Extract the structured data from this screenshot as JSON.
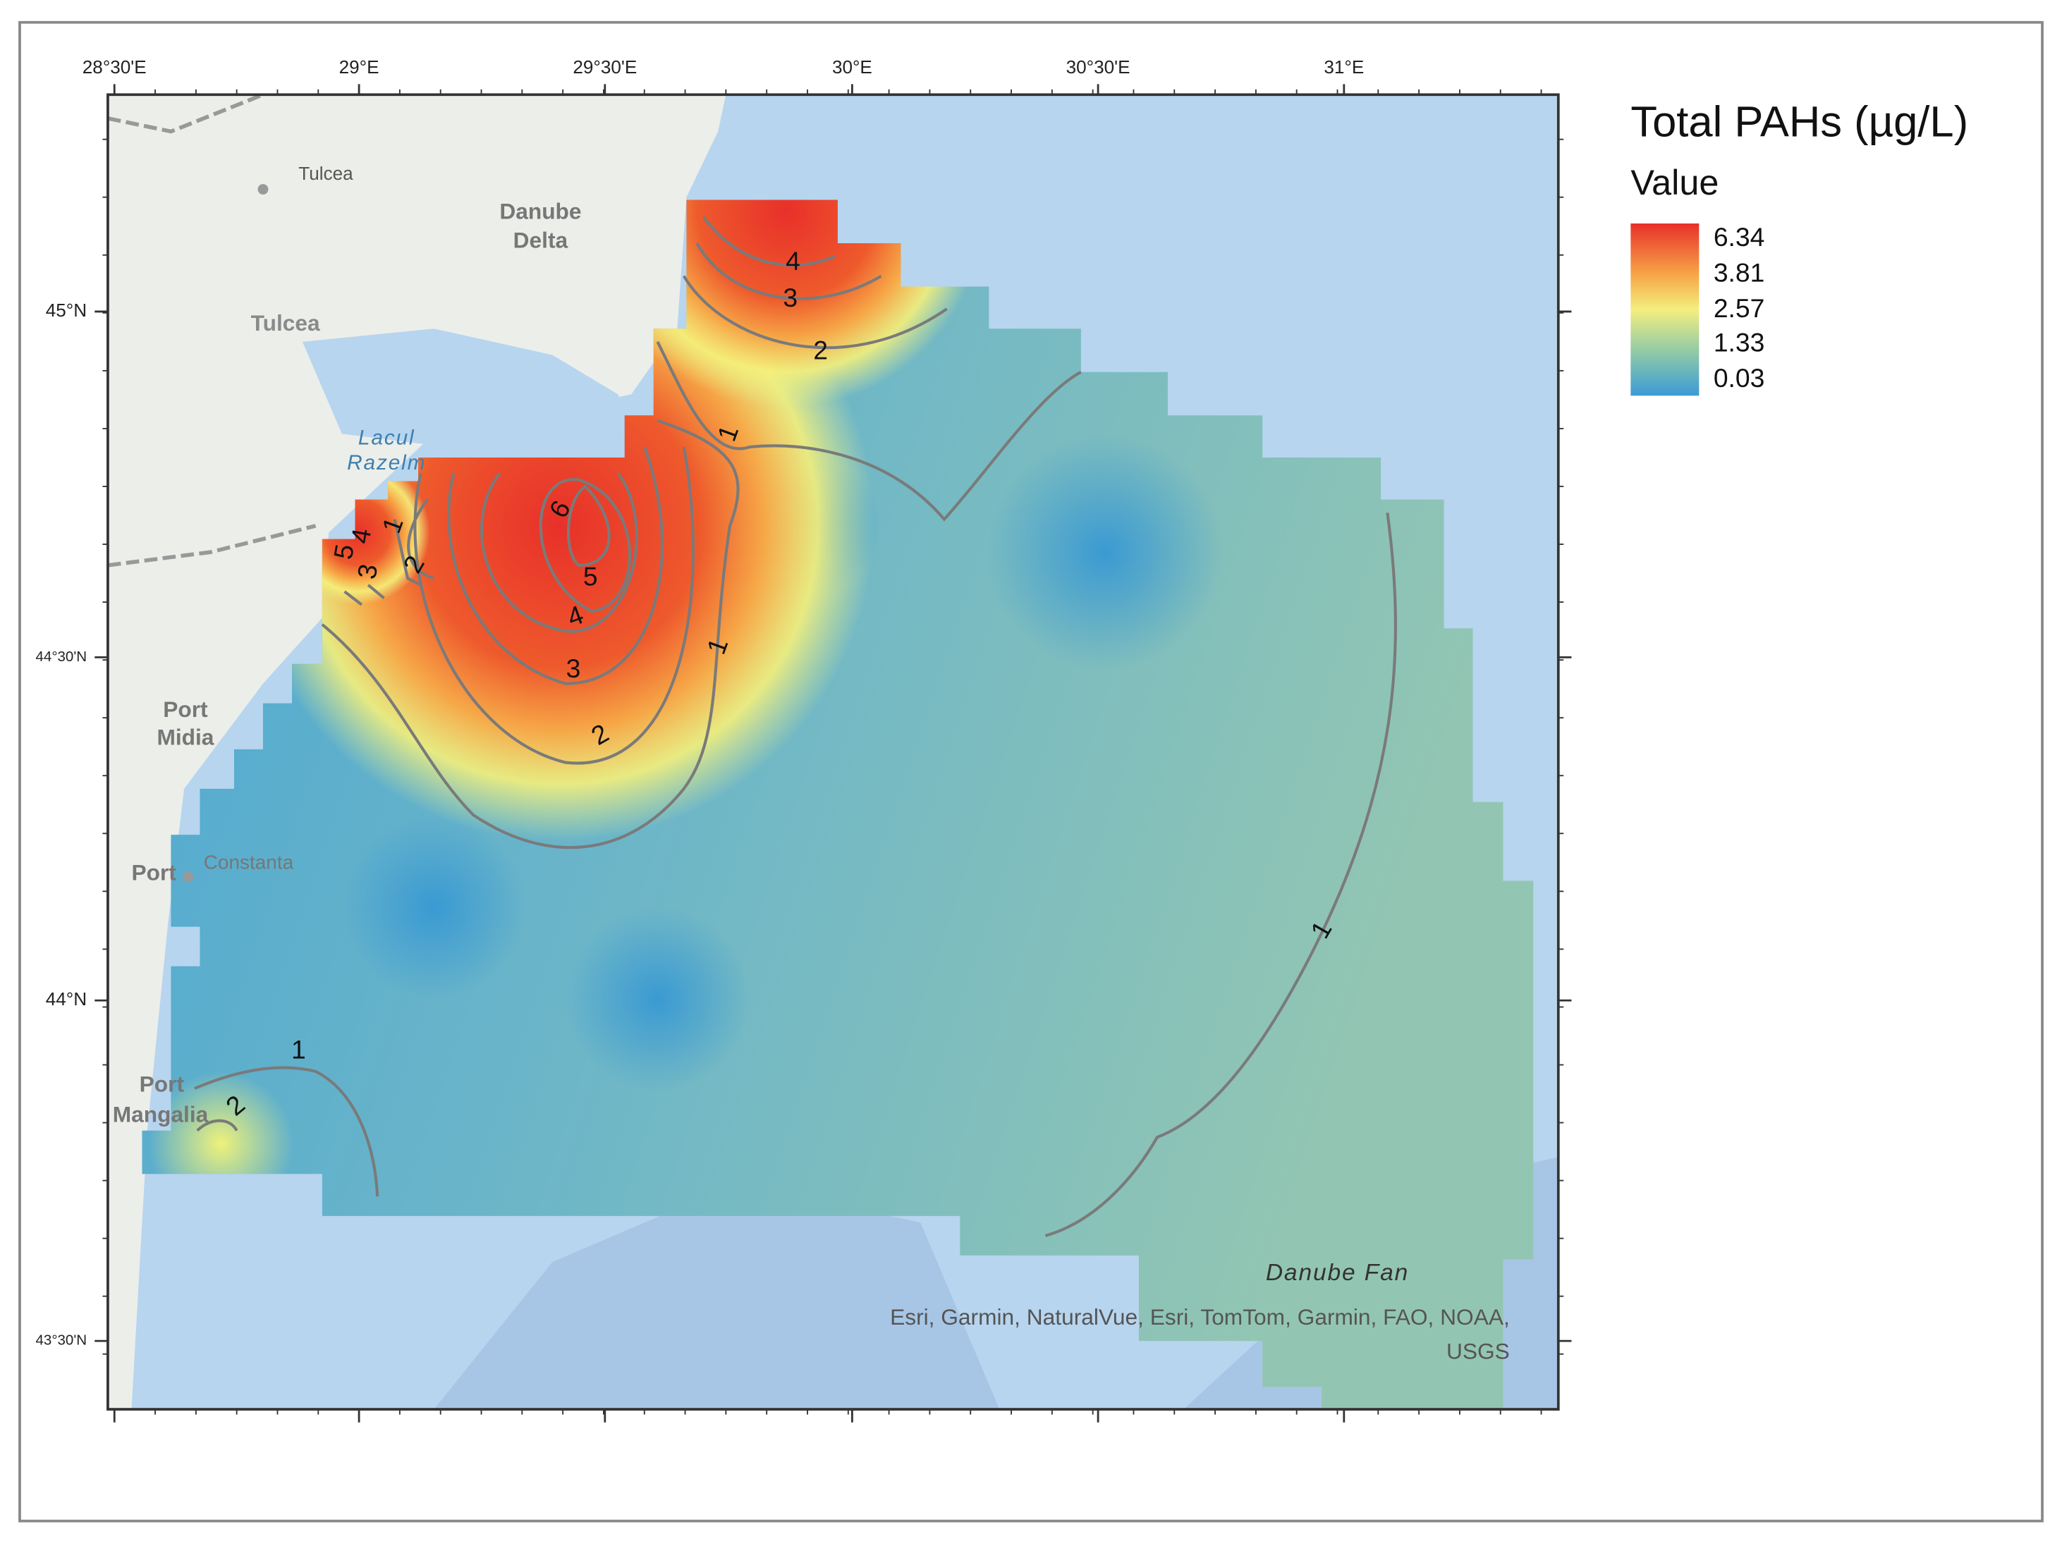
{
  "legend": {
    "title": "Total PAHs (µg/L)",
    "subtitle": "Value",
    "labels": [
      "6.34",
      "3.81",
      "2.57",
      "1.33",
      "0.03"
    ]
  },
  "axes": {
    "top": [
      "28°30'E",
      "29°E",
      "29°30'E",
      "30°E",
      "30°30'E",
      "31°E"
    ],
    "left": [
      "45°N",
      "44°30'N",
      "44°N",
      "43°30'N"
    ]
  },
  "places": [
    "Tulcea",
    "Tulcea",
    "Danube",
    "Delta",
    "Lacul",
    "Razelm",
    "Port",
    "Midia",
    "Port",
    "Constanta",
    "Port",
    "Mangalia",
    "Danube Fan"
  ],
  "contour_labels": [
    "4",
    "3",
    "2",
    "1",
    "6",
    "5",
    "4",
    "3",
    "2",
    "1",
    "5",
    "4",
    "3",
    "1",
    "2",
    "1",
    "1",
    "2"
  ],
  "attribution": [
    "Esri, Garmin, NaturalVue, Esri, TomTom, Garmin, FAO, NOAA,",
    "USGS"
  ]
}
